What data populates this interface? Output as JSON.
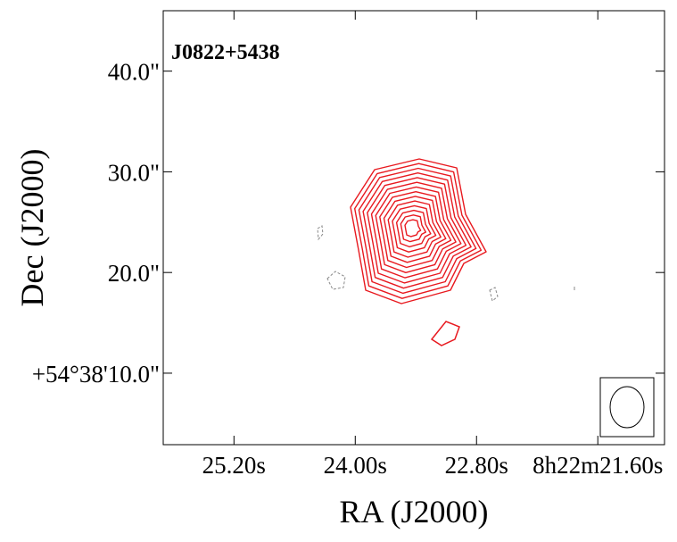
{
  "chart_data": {
    "type": "contour",
    "annotation": "J0822+5438",
    "xlabel": "RA (J2000)",
    "ylabel": "Dec (J2000)",
    "xlim": [
      25.9,
      20.94
    ],
    "xticks": [
      {
        "value": 25.2,
        "label": "25.20s"
      },
      {
        "value": 24.0,
        "label": "24.00s"
      },
      {
        "value": 22.8,
        "label": "22.80s"
      },
      {
        "value": 21.6,
        "label": "8h22m21.60s"
      }
    ],
    "ylim": [
      2.9,
      46.0
    ],
    "yticks": [
      {
        "value": 40,
        "label": "40.0\""
      },
      {
        "value": 30,
        "label": "30.0\""
      },
      {
        "value": 20,
        "label": "20.0\""
      },
      {
        "value": 10,
        "label": "+54°38'10.0\""
      }
    ],
    "color": "#e8191f"
  }
}
